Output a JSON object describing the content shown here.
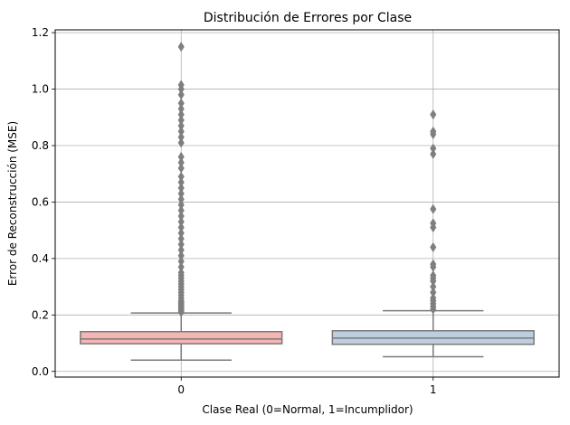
{
  "chart_data": {
    "type": "box",
    "title": "Distribución de Errores por Clase",
    "xlabel": "Clase Real (0=Normal, 1=Incumplidor)",
    "ylabel": "Error de Reconstrucción (MSE)",
    "ylim": [
      -0.02,
      1.21
    ],
    "yticks": [
      "0.0",
      "0.2",
      "0.4",
      "0.6",
      "0.8",
      "1.0",
      "1.2"
    ],
    "grid": true,
    "categories": [
      "0",
      "1"
    ],
    "boxes": [
      {
        "category": "0",
        "color": "#f4b5b3",
        "whisker_low": 0.04,
        "q1": 0.098,
        "median": 0.115,
        "q3": 0.141,
        "whisker_high": 0.207,
        "outliers": [
          0.21,
          0.215,
          0.22,
          0.225,
          0.23,
          0.235,
          0.24,
          0.245,
          0.25,
          0.26,
          0.27,
          0.28,
          0.29,
          0.3,
          0.31,
          0.32,
          0.33,
          0.34,
          0.35,
          0.37,
          0.39,
          0.41,
          0.43,
          0.45,
          0.47,
          0.49,
          0.51,
          0.53,
          0.55,
          0.57,
          0.59,
          0.61,
          0.63,
          0.65,
          0.67,
          0.69,
          0.72,
          0.74,
          0.76,
          0.81,
          0.83,
          0.85,
          0.87,
          0.89,
          0.91,
          0.93,
          0.95,
          0.98,
          1.0,
          1.015,
          1.15
        ]
      },
      {
        "category": "1",
        "color": "#bccee0",
        "whisker_low": 0.052,
        "q1": 0.096,
        "median": 0.118,
        "q3": 0.144,
        "whisker_high": 0.215,
        "outliers": [
          0.22,
          0.23,
          0.24,
          0.25,
          0.26,
          0.28,
          0.3,
          0.32,
          0.33,
          0.34,
          0.37,
          0.38,
          0.44,
          0.51,
          0.525,
          0.575,
          0.77,
          0.79,
          0.84,
          0.85,
          0.91
        ]
      }
    ]
  }
}
